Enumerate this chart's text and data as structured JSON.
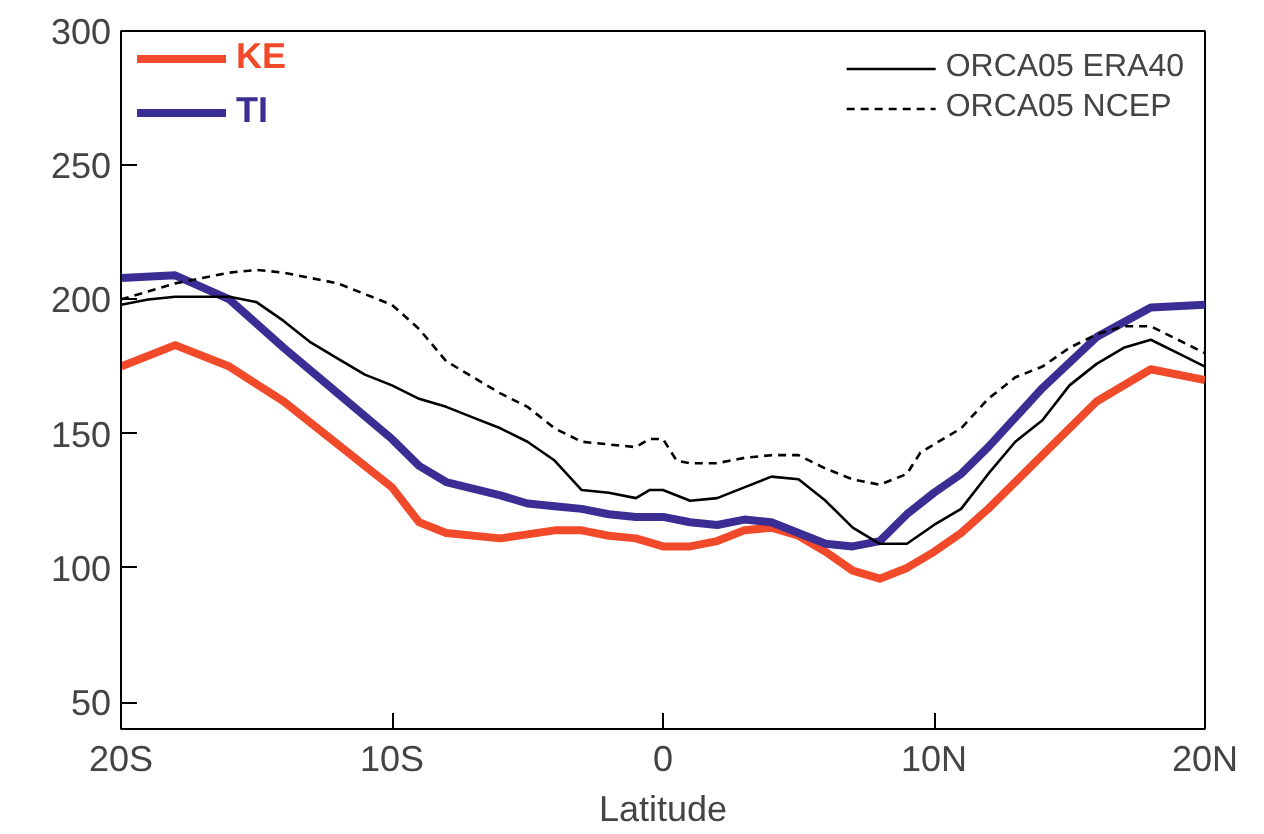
{
  "chart_data": {
    "type": "line",
    "xlabel": "Latitude",
    "xlim": [
      -20,
      20
    ],
    "ylim": [
      40,
      300
    ],
    "xticks": [
      {
        "value": -20,
        "label": "20S"
      },
      {
        "value": -10,
        "label": "10S"
      },
      0,
      {
        "value": 10,
        "label": "10N"
      },
      {
        "value": 20,
        "label": "20N"
      }
    ],
    "yticks": [
      50,
      100,
      150,
      200,
      250,
      300
    ],
    "legend": "top",
    "grid": false,
    "series": [
      {
        "name": "KE",
        "color": "#f04a2a",
        "line_style": "solid",
        "x": [
          -20,
          -18,
          -16,
          -14,
          -12,
          -10,
          -9,
          -8,
          -6,
          -4,
          -3,
          -2,
          -1,
          0,
          1,
          2,
          3,
          4,
          5,
          6,
          7,
          8,
          9,
          10,
          11,
          12,
          14,
          16,
          18,
          20
        ],
        "values": [
          175,
          183,
          175,
          162,
          146,
          130,
          117,
          113,
          111,
          114,
          114,
          112,
          111,
          108,
          108,
          110,
          114,
          115,
          112,
          106,
          99,
          96,
          100,
          106,
          113,
          122,
          142,
          162,
          174,
          170
        ]
      },
      {
        "name": "TI",
        "color": "#3a2d94",
        "line_style": "solid",
        "x": [
          -20,
          -18,
          -16,
          -14,
          -12,
          -10,
          -9,
          -8,
          -6,
          -5,
          -4,
          -3,
          -2,
          -1,
          0,
          1,
          2,
          3,
          4,
          5,
          6,
          7,
          8,
          9,
          10,
          11,
          12,
          14,
          16,
          18,
          20
        ],
        "values": [
          208,
          209,
          200,
          182,
          165,
          148,
          138,
          132,
          127,
          124,
          123,
          122,
          120,
          119,
          119,
          117,
          116,
          118,
          117,
          113,
          109,
          108,
          110,
          120,
          128,
          135,
          145,
          167,
          186,
          197,
          198
        ]
      },
      {
        "name": "ORCA05 ERA40",
        "color": "#000000",
        "line_style": "solid",
        "x": [
          -20,
          -19,
          -18,
          -16,
          -15,
          -14,
          -13,
          -12,
          -11,
          -10,
          -9,
          -8,
          -7,
          -6,
          -5,
          -4,
          -3,
          -2,
          -1,
          -0.5,
          0,
          1,
          2,
          3,
          4,
          5,
          6,
          7,
          8,
          9,
          10,
          11,
          12,
          13,
          14,
          15,
          16,
          17,
          18,
          19,
          20
        ],
        "values": [
          198,
          200,
          201,
          201,
          199,
          192,
          184,
          178,
          172,
          168,
          163,
          160,
          156,
          152,
          147,
          140,
          129,
          128,
          126,
          129,
          129,
          125,
          126,
          130,
          134,
          133,
          125,
          115,
          109,
          109,
          116,
          122,
          135,
          147,
          155,
          168,
          176,
          182,
          185,
          180,
          175
        ]
      },
      {
        "name": "ORCA05 NCEP",
        "color": "#000000",
        "line_style": "dashed",
        "x": [
          -20,
          -18,
          -16,
          -15,
          -14,
          -12,
          -10,
          -9,
          -8,
          -7,
          -6,
          -5,
          -4,
          -3,
          -2,
          -1,
          -0.5,
          0,
          0.5,
          1,
          2,
          3,
          4,
          5,
          6,
          7,
          8,
          9,
          9.5,
          10,
          11,
          12,
          13,
          14,
          15,
          16,
          17,
          18,
          19,
          20
        ],
        "values": [
          200,
          206,
          210,
          211,
          210,
          206,
          198,
          189,
          177,
          171,
          165,
          160,
          152,
          147,
          146,
          145,
          148,
          148,
          140,
          139,
          139,
          141,
          142,
          142,
          137,
          133,
          131,
          135,
          143,
          146,
          152,
          163,
          171,
          175,
          182,
          187,
          190,
          190,
          185,
          180
        ]
      }
    ]
  }
}
